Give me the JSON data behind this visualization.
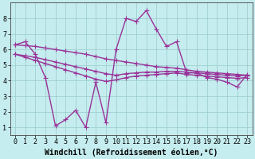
{
  "background_color": "#c5ecee",
  "line_color": "#993399",
  "grid_color": "#99cccc",
  "xlabel": "Windchill (Refroidissement éolien,°C)",
  "x_ticks": [
    0,
    1,
    2,
    3,
    4,
    5,
    6,
    7,
    8,
    9,
    10,
    11,
    12,
    13,
    14,
    15,
    16,
    17,
    18,
    19,
    20,
    21,
    22,
    23
  ],
  "y_ticks": [
    1,
    2,
    3,
    4,
    5,
    6,
    7,
    8
  ],
  "ylim": [
    0.5,
    9.0
  ],
  "xlim": [
    -0.5,
    23.5
  ],
  "line1_x": [
    0,
    1,
    2,
    3,
    4,
    5,
    6,
    7,
    8,
    9,
    10,
    11,
    12,
    13,
    14,
    15,
    16,
    17,
    18,
    19,
    20,
    21,
    22,
    23
  ],
  "line1_y": [
    6.3,
    6.5,
    5.7,
    4.2,
    1.1,
    1.5,
    2.1,
    1.0,
    3.9,
    1.3,
    6.0,
    8.0,
    7.8,
    8.5,
    7.3,
    6.2,
    6.5,
    4.5,
    4.5,
    4.2,
    4.1,
    3.9,
    3.6,
    4.4
  ],
  "line2_x": [
    0,
    1,
    2,
    3,
    4,
    5,
    6,
    7,
    8,
    9,
    10,
    11,
    12,
    13,
    14,
    15,
    16,
    17,
    18,
    19,
    20,
    21,
    22,
    23
  ],
  "line2_y": [
    6.3,
    6.25,
    6.2,
    6.1,
    6.0,
    5.9,
    5.8,
    5.7,
    5.55,
    5.4,
    5.3,
    5.2,
    5.1,
    5.0,
    4.9,
    4.85,
    4.8,
    4.7,
    4.6,
    4.55,
    4.5,
    4.45,
    4.4,
    4.35
  ],
  "line3_x": [
    0,
    1,
    2,
    3,
    4,
    5,
    6,
    7,
    8,
    9,
    10,
    11,
    12,
    13,
    14,
    15,
    16,
    17,
    18,
    19,
    20,
    21,
    22,
    23
  ],
  "line3_y": [
    5.7,
    5.6,
    5.5,
    5.35,
    5.2,
    5.05,
    4.9,
    4.75,
    4.6,
    4.45,
    4.35,
    4.45,
    4.5,
    4.55,
    4.55,
    4.6,
    4.6,
    4.55,
    4.5,
    4.45,
    4.4,
    4.35,
    4.3,
    4.35
  ],
  "line4_x": [
    0,
    1,
    2,
    3,
    4,
    5,
    6,
    7,
    8,
    9,
    10,
    11,
    12,
    13,
    14,
    15,
    16,
    17,
    18,
    19,
    20,
    21,
    22,
    23
  ],
  "line4_y": [
    5.7,
    5.5,
    5.3,
    5.1,
    4.9,
    4.7,
    4.5,
    4.3,
    4.1,
    3.95,
    4.05,
    4.2,
    4.3,
    4.35,
    4.4,
    4.45,
    4.5,
    4.4,
    4.35,
    4.3,
    4.25,
    4.2,
    4.15,
    4.2
  ],
  "marker": "+",
  "markersize": 4,
  "linewidth": 1.0,
  "tick_fontsize": 6,
  "xlabel_fontsize": 7
}
